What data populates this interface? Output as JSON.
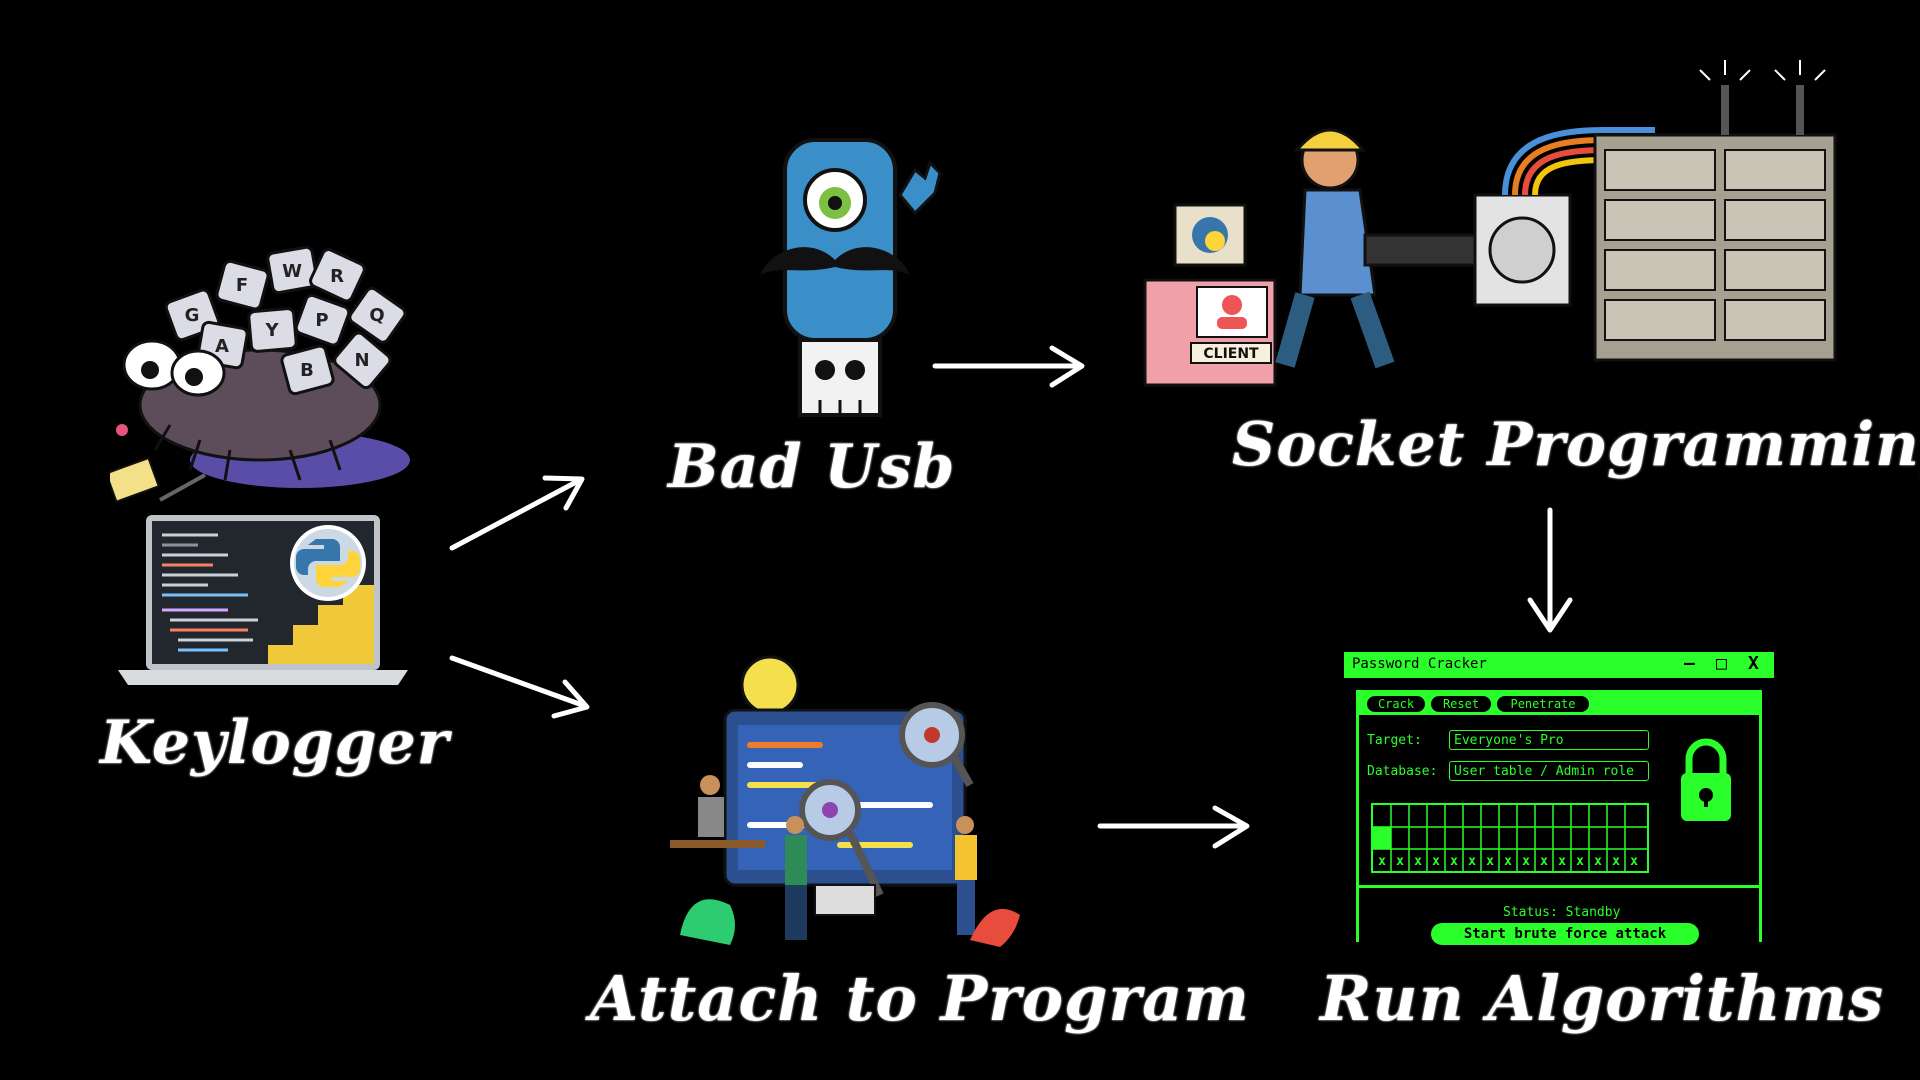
{
  "labels": {
    "keylogger": "Keylogger",
    "bad_usb": "Bad Usb",
    "socket_programming": "Socket Programming",
    "attach_to_program": "Attach to Program",
    "run_algorithms": "Run Algorithms"
  },
  "keys": [
    "G",
    "W",
    "R",
    "A",
    "Y",
    "P",
    "Q",
    "F",
    "B",
    "N"
  ],
  "client_label": "CLIENT",
  "password_cracker": {
    "title": "Password Cracker",
    "window_buttons": [
      "–",
      "□",
      "X"
    ],
    "toolbar": [
      "Crack",
      "Reset",
      "Penetrate"
    ],
    "target_label": "Target:",
    "target_value": "Everyone's Pro",
    "database_label": "Database:",
    "database_value": "User table / Admin role",
    "status": "Status: Standby",
    "start_button": "Start brute force attack"
  },
  "colors": {
    "background": "#000000",
    "text": "#ffffff",
    "terminal_green": "#2bff2b"
  }
}
